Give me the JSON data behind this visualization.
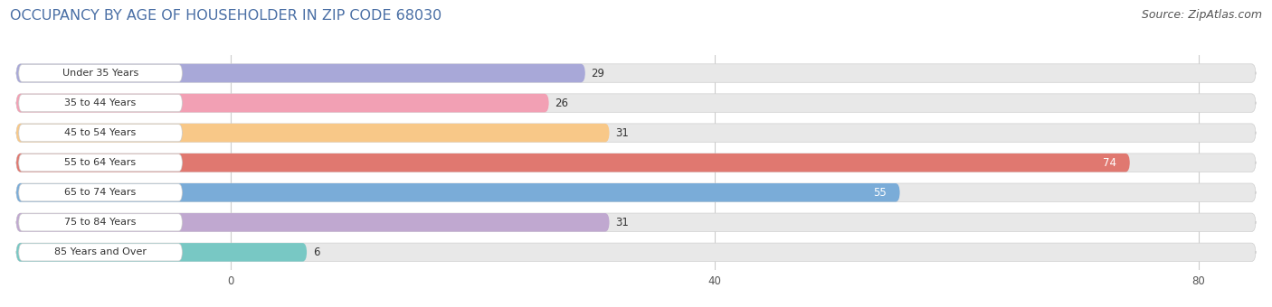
{
  "title": "OCCUPANCY BY AGE OF HOUSEHOLDER IN ZIP CODE 68030",
  "source": "Source: ZipAtlas.com",
  "categories": [
    "Under 35 Years",
    "35 to 44 Years",
    "45 to 54 Years",
    "55 to 64 Years",
    "65 to 74 Years",
    "75 to 84 Years",
    "85 Years and Over"
  ],
  "values": [
    29,
    26,
    31,
    74,
    55,
    31,
    6
  ],
  "bar_colors": [
    "#a8a8d8",
    "#f2a0b4",
    "#f8c888",
    "#e07870",
    "#7aacd8",
    "#c0a8d0",
    "#78c8c4"
  ],
  "bar_bg_color": "#e8e8e8",
  "xlim_left": -18,
  "xlim_right": 85,
  "xticks": [
    0,
    40,
    80
  ],
  "bar_height": 0.62,
  "title_fontsize": 11.5,
  "source_fontsize": 9,
  "label_fontsize": 8,
  "value_fontsize": 8.5,
  "fig_bg_color": "#ffffff",
  "axes_bg_color": "#ffffff",
  "title_color": "#4a6fa5",
  "label_color": "#333333",
  "value_color_dark": "#333333",
  "value_color_light": "#ffffff"
}
